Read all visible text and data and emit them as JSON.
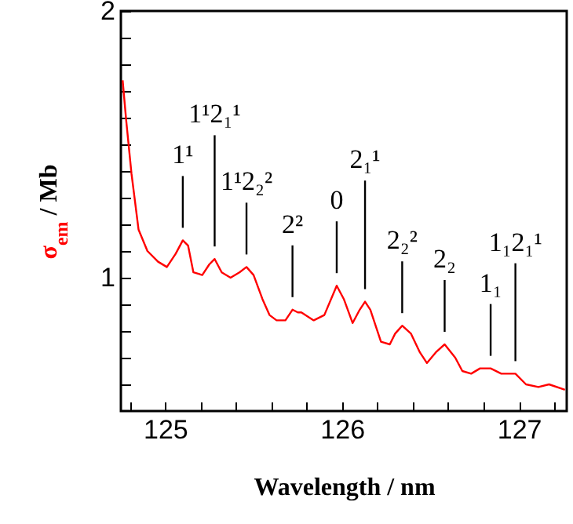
{
  "chart_data": {
    "type": "line",
    "xlabel": "Wavelength / nm",
    "ylabel": "σ$_{em}$ / Mb",
    "series": [
      {
        "color": "#ff0000",
        "x": [
          124.76,
          124.78,
          124.81,
          124.85,
          124.9,
          124.96,
          125.01,
          125.06,
          125.1,
          125.13,
          125.16,
          125.21,
          125.25,
          125.28,
          125.32,
          125.37,
          125.42,
          125.46,
          125.5,
          125.55,
          125.59,
          125.63,
          125.68,
          125.72,
          125.75,
          125.77,
          125.84,
          125.9,
          125.97,
          126.01,
          126.06,
          126.1,
          126.13,
          126.16,
          126.22,
          126.27,
          126.3,
          126.34,
          126.39,
          126.44,
          126.48,
          126.53,
          126.58,
          126.64,
          126.68,
          126.73,
          126.78,
          126.84,
          126.9,
          126.98,
          127.04,
          127.11,
          127.17,
          127.26
        ],
        "values": [
          1.74,
          1.59,
          1.39,
          1.18,
          1.1,
          1.06,
          1.04,
          1.09,
          1.14,
          1.12,
          1.02,
          1.01,
          1.05,
          1.07,
          1.02,
          1.0,
          1.02,
          1.04,
          1.01,
          0.92,
          0.86,
          0.84,
          0.84,
          0.88,
          0.87,
          0.87,
          0.84,
          0.86,
          0.97,
          0.92,
          0.83,
          0.88,
          0.91,
          0.88,
          0.76,
          0.75,
          0.79,
          0.82,
          0.79,
          0.72,
          0.68,
          0.72,
          0.75,
          0.7,
          0.65,
          0.64,
          0.66,
          0.66,
          0.64,
          0.64,
          0.6,
          0.59,
          0.6,
          0.58
        ]
      }
    ],
    "xlim": [
      124.75,
      127.27
    ],
    "xticks": [
      {
        "value": 124.8,
        "label": null
      },
      125,
      {
        "value": 125.2,
        "label": null
      },
      {
        "value": 125.4,
        "label": null
      },
      {
        "value": 125.6,
        "label": null
      },
      {
        "value": 125.8,
        "label": null
      },
      126,
      {
        "value": 126.2,
        "label": null
      },
      {
        "value": 126.4,
        "label": null
      },
      {
        "value": 126.6,
        "label": null
      },
      {
        "value": 126.8,
        "label": null
      },
      127,
      {
        "value": 127.2,
        "label": null
      }
    ],
    "ylim": [
      0.5,
      2
    ],
    "yticks": [
      {
        "value": 0.6,
        "label": null
      },
      {
        "value": 0.7,
        "label": null
      },
      {
        "value": 0.8,
        "label": null
      },
      {
        "value": 0.9,
        "label": null
      },
      1,
      {
        "value": 1.1,
        "label": null
      },
      {
        "value": 1.2,
        "label": null
      },
      {
        "value": 1.3,
        "label": null
      },
      {
        "value": 1.4,
        "label": null
      },
      {
        "value": 1.5,
        "label": null
      },
      {
        "value": 1.6,
        "label": null
      },
      {
        "value": 1.7,
        "label": null
      },
      {
        "value": 1.8,
        "label": null
      },
      {
        "value": 1.9,
        "label": null
      },
      2
    ],
    "annotations": [
      {
        "text": "1¹",
        "x": 125.1,
        "y": 1.14
      },
      {
        "text": "1¹2₁¹",
        "x": 125.28,
        "y": 1.07
      },
      {
        "text": "1¹2₂²",
        "x": 125.46,
        "y": 1.04
      },
      {
        "text": "2²",
        "x": 125.72,
        "y": 0.88
      },
      {
        "text": "0",
        "x": 125.97,
        "y": 0.97
      },
      {
        "text": "2₁¹",
        "x": 126.13,
        "y": 0.91
      },
      {
        "text": "2₂²",
        "x": 126.34,
        "y": 0.82
      },
      {
        "text": "2₂",
        "x": 126.58,
        "y": 0.75
      },
      {
        "text": "1₁",
        "x": 126.84,
        "y": 0.66
      },
      {
        "text": "1₁2₁¹",
        "x": 126.98,
        "y": 0.64
      }
    ],
    "grid": false,
    "marker": "none",
    "line_style": "solid"
  }
}
